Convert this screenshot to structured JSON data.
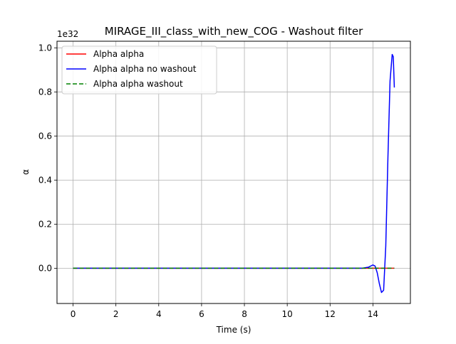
{
  "chart_data": {
    "type": "line",
    "title": "MIRAGE_III_class_with_new_COG - Washout filter",
    "xlabel": "Time (s)",
    "ylabel": "α",
    "y_offset_label": "1e32",
    "xlim": [
      -0.75,
      15.75
    ],
    "ylim": [
      -0.16,
      1.03
    ],
    "x_ticks": [
      0,
      2,
      4,
      6,
      8,
      10,
      12,
      14
    ],
    "y_ticks": [
      0.0,
      0.2,
      0.4,
      0.6,
      0.8,
      1.0
    ],
    "x_tick_labels": [
      "0",
      "2",
      "4",
      "6",
      "8",
      "10",
      "12",
      "14"
    ],
    "y_tick_labels": [
      "0.0",
      "0.2",
      "0.4",
      "0.6",
      "0.8",
      "1.0"
    ],
    "grid": true,
    "legend_position": "upper-left",
    "series": [
      {
        "name": "Alpha alpha",
        "color": "#ff0000",
        "dash": "solid",
        "x": [
          0,
          15
        ],
        "y": [
          0,
          0
        ]
      },
      {
        "name": "Alpha alpha no washout",
        "color": "#0000ff",
        "dash": "solid",
        "x": [
          0,
          13.5,
          13.8,
          14.0,
          14.1,
          14.2,
          14.3,
          14.4,
          14.5,
          14.6,
          14.7,
          14.8,
          14.9,
          14.95,
          15.0
        ],
        "y": [
          0,
          0,
          0.005,
          0.015,
          0.01,
          -0.02,
          -0.07,
          -0.11,
          -0.1,
          0.1,
          0.5,
          0.85,
          0.97,
          0.96,
          0.82
        ]
      },
      {
        "name": "Alpha alpha washout",
        "color": "#008000",
        "dash": "dashed",
        "x": [
          0,
          15
        ],
        "y": [
          0,
          0
        ]
      }
    ]
  }
}
